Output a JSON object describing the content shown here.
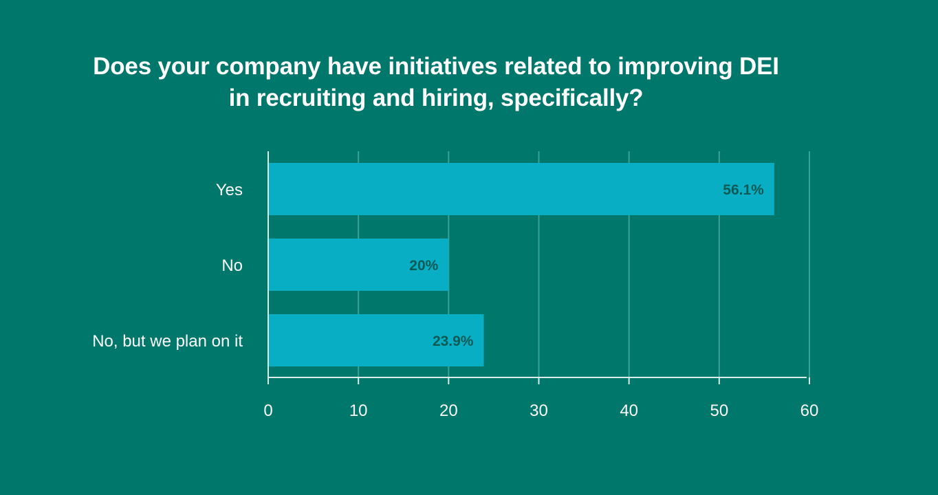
{
  "colors": {
    "background": "#00776b",
    "bar": "#08aec3",
    "data_label": "#0c5a56",
    "grid": "#3aa294",
    "axis": "#d9ece8",
    "text": "#ffffff"
  },
  "chart_data": {
    "type": "bar",
    "orientation": "horizontal",
    "title_lines": [
      "Does your company have initiatives related to improving DEI",
      "in recruiting and hiring, specifically?"
    ],
    "categories": [
      "Yes",
      "No",
      "No, but we plan on it"
    ],
    "values": [
      56.1,
      20,
      23.9
    ],
    "data_labels": [
      "56.1%",
      "20%",
      "23.9%"
    ],
    "xlim": [
      0,
      60
    ],
    "xticks": [
      0,
      10,
      20,
      30,
      40,
      50,
      60
    ],
    "xlabel": "",
    "ylabel": "",
    "grid": true,
    "legend": "none"
  }
}
